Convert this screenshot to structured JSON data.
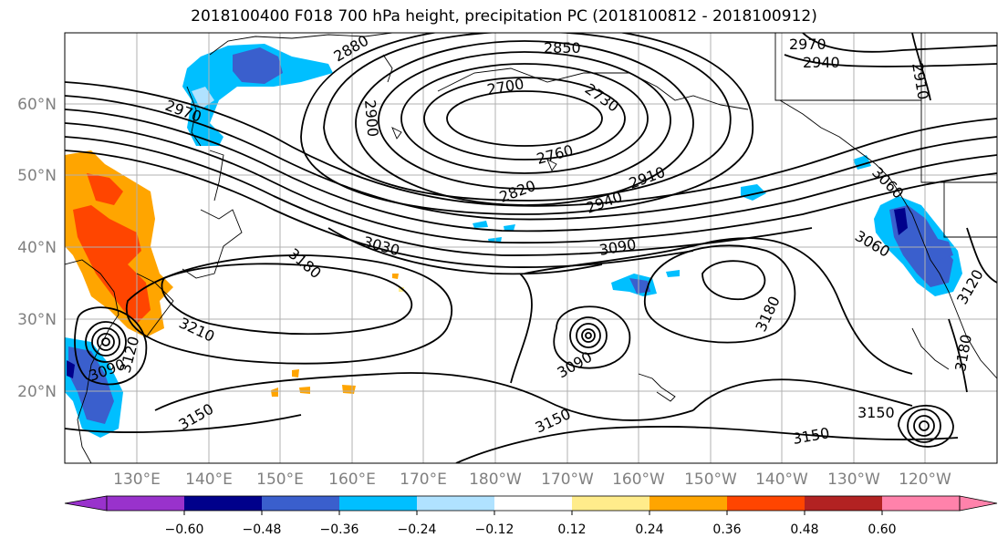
{
  "title": "2018100400 F018 700 hPa height, precipitation PC (2018100812 - 2018100912)",
  "lat_labels": [
    "60°N",
    "50°N",
    "40°N",
    "30°N",
    "20°N"
  ],
  "lon_labels": [
    "130°E",
    "140°E",
    "150°E",
    "160°E",
    "170°E",
    "180°W",
    "170°W",
    "160°W",
    "150°W",
    "140°W",
    "130°W",
    "120°W"
  ],
  "contour_labels": [
    "2850",
    "2880",
    "2700",
    "2730",
    "2970",
    "2970",
    "2940",
    "2910",
    "2900",
    "2760",
    "2820",
    "2940",
    "2910",
    "3030",
    "3090",
    "3180",
    "3210",
    "3090",
    "3120",
    "3150",
    "3090",
    "3150",
    "3180",
    "3060",
    "3060",
    "3120",
    "3180",
    "3150",
    "3150"
  ],
  "colorbar": {
    "colors": [
      "#9932cc",
      "#00008b",
      "#3a5fcd",
      "#00bfff",
      "#b0e2ff",
      "#ffffff",
      "#ffec8b",
      "#ffa500",
      "#ff4500",
      "#b22222",
      "#ff82ab"
    ],
    "tick_labels": [
      "−0.60",
      "−0.48",
      "−0.36",
      "−0.24",
      "−0.12",
      "0.12",
      "0.24",
      "0.36",
      "0.48",
      "0.60"
    ]
  },
  "regions": [
    {
      "name": "precip-china-positive",
      "color": "#ffa500"
    },
    {
      "name": "precip-china-strong",
      "color": "#ff4500"
    },
    {
      "name": "precip-kamchatka-negative",
      "color": "#00bfff"
    },
    {
      "name": "precip-pacific-nw-negative",
      "color": "#3a5fcd"
    }
  ]
}
